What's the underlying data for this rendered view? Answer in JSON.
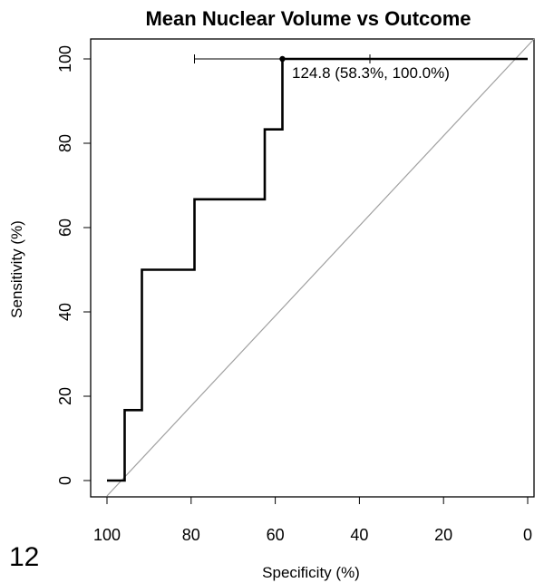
{
  "panel_label": "12",
  "chart_data": {
    "type": "line",
    "title": "Mean Nuclear Volume vs Outcome",
    "xlabel": "Specificity (%)",
    "ylabel": "Sensitivity (%)",
    "x_reversed": true,
    "xlim": [
      100,
      0
    ],
    "ylim": [
      0,
      100
    ],
    "x_ticks": [
      100,
      80,
      60,
      40,
      20,
      0
    ],
    "y_ticks": [
      0,
      20,
      40,
      60,
      80,
      100
    ],
    "grid": false,
    "series": [
      {
        "x": [
          100,
          95.8,
          95.8,
          91.7,
          91.7,
          79.2,
          79.2,
          62.5,
          62.5,
          58.3,
          58.3,
          0
        ],
        "y": [
          0,
          0,
          16.7,
          16.7,
          50.0,
          50.0,
          66.7,
          66.7,
          83.3,
          83.3,
          100.0,
          100.0
        ],
        "color": "#000000"
      }
    ],
    "reference_line": {
      "x": [
        100,
        0
      ],
      "y": [
        0,
        100
      ],
      "color": "#a0a0a0"
    },
    "best_threshold": {
      "x": 58.3,
      "y": 100.0,
      "ci_x": [
        79.2,
        37.5
      ],
      "label": "124.8 (58.3%, 100.0%)"
    }
  }
}
